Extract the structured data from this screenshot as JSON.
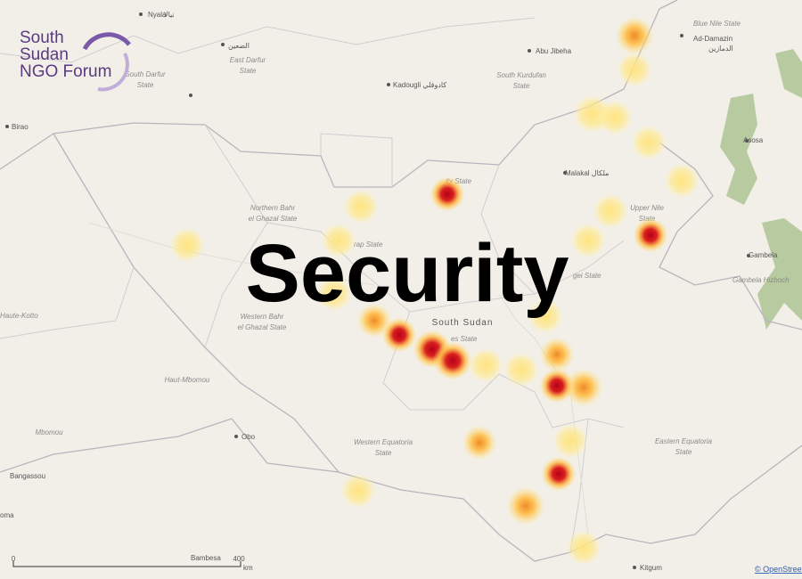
{
  "logo": {
    "lines": [
      "South",
      "Sudan",
      "NGO Forum"
    ]
  },
  "title": "Security",
  "places": [
    {
      "lines": [
        "Nyala"
      ]
    },
    {
      "lines": [
        "نيالا"
      ]
    },
    {
      "lines": [
        "الضعين"
      ]
    },
    {
      "lines": [
        "East Darfur",
        "State"
      ]
    },
    {
      "lines": [
        "South Darfur",
        "State"
      ]
    },
    {
      "lines": [
        "Kadougli كادوقلي"
      ]
    },
    {
      "lines": [
        "Abu Jibeha"
      ]
    },
    {
      "lines": [
        "South Kurdufan",
        "State"
      ]
    },
    {
      "lines": [
        "Ad-Damazin",
        "الدمازين"
      ]
    },
    {
      "lines": [
        "Blue Nile State"
      ]
    },
    {
      "lines": [
        "Birao"
      ]
    },
    {
      "lines": [
        "Northern Bahr",
        "el Ghazal State"
      ]
    },
    {
      "lines": [
        "ity State"
      ]
    },
    {
      "lines": [
        "rap State"
      ]
    },
    {
      "lines": [
        "Malakal ملكال"
      ]
    },
    {
      "lines": [
        "Upper Nile",
        "State"
      ]
    },
    {
      "lines": [
        "Asosa"
      ]
    },
    {
      "lines": [
        "Gambela"
      ]
    },
    {
      "lines": [
        "Gambela Hizboch"
      ]
    },
    {
      "lines": [
        "gei State"
      ]
    },
    {
      "lines": [
        "South Sudan"
      ]
    },
    {
      "lines": [
        "es State"
      ]
    },
    {
      "lines": [
        "Western Bahr",
        "el Ghazal State"
      ]
    },
    {
      "lines": [
        "Haute-Kotto"
      ]
    },
    {
      "lines": [
        "Haut-Mbomou"
      ]
    },
    {
      "lines": [
        "Mbomou"
      ]
    },
    {
      "lines": [
        "Obo"
      ]
    },
    {
      "lines": [
        "Western Equatoria",
        "State"
      ]
    },
    {
      "lines": [
        "Eastern Equatoria",
        "State"
      ]
    },
    {
      "lines": [
        "Bangassou"
      ]
    },
    {
      "lines": [
        "oma"
      ]
    },
    {
      "lines": [
        "Bambesa"
      ]
    },
    {
      "lines": [
        "Kitgum"
      ]
    }
  ],
  "scale": {
    "start": "0",
    "end": "400",
    "unit": "km"
  },
  "attribution": "© OpenStreetMap"
}
